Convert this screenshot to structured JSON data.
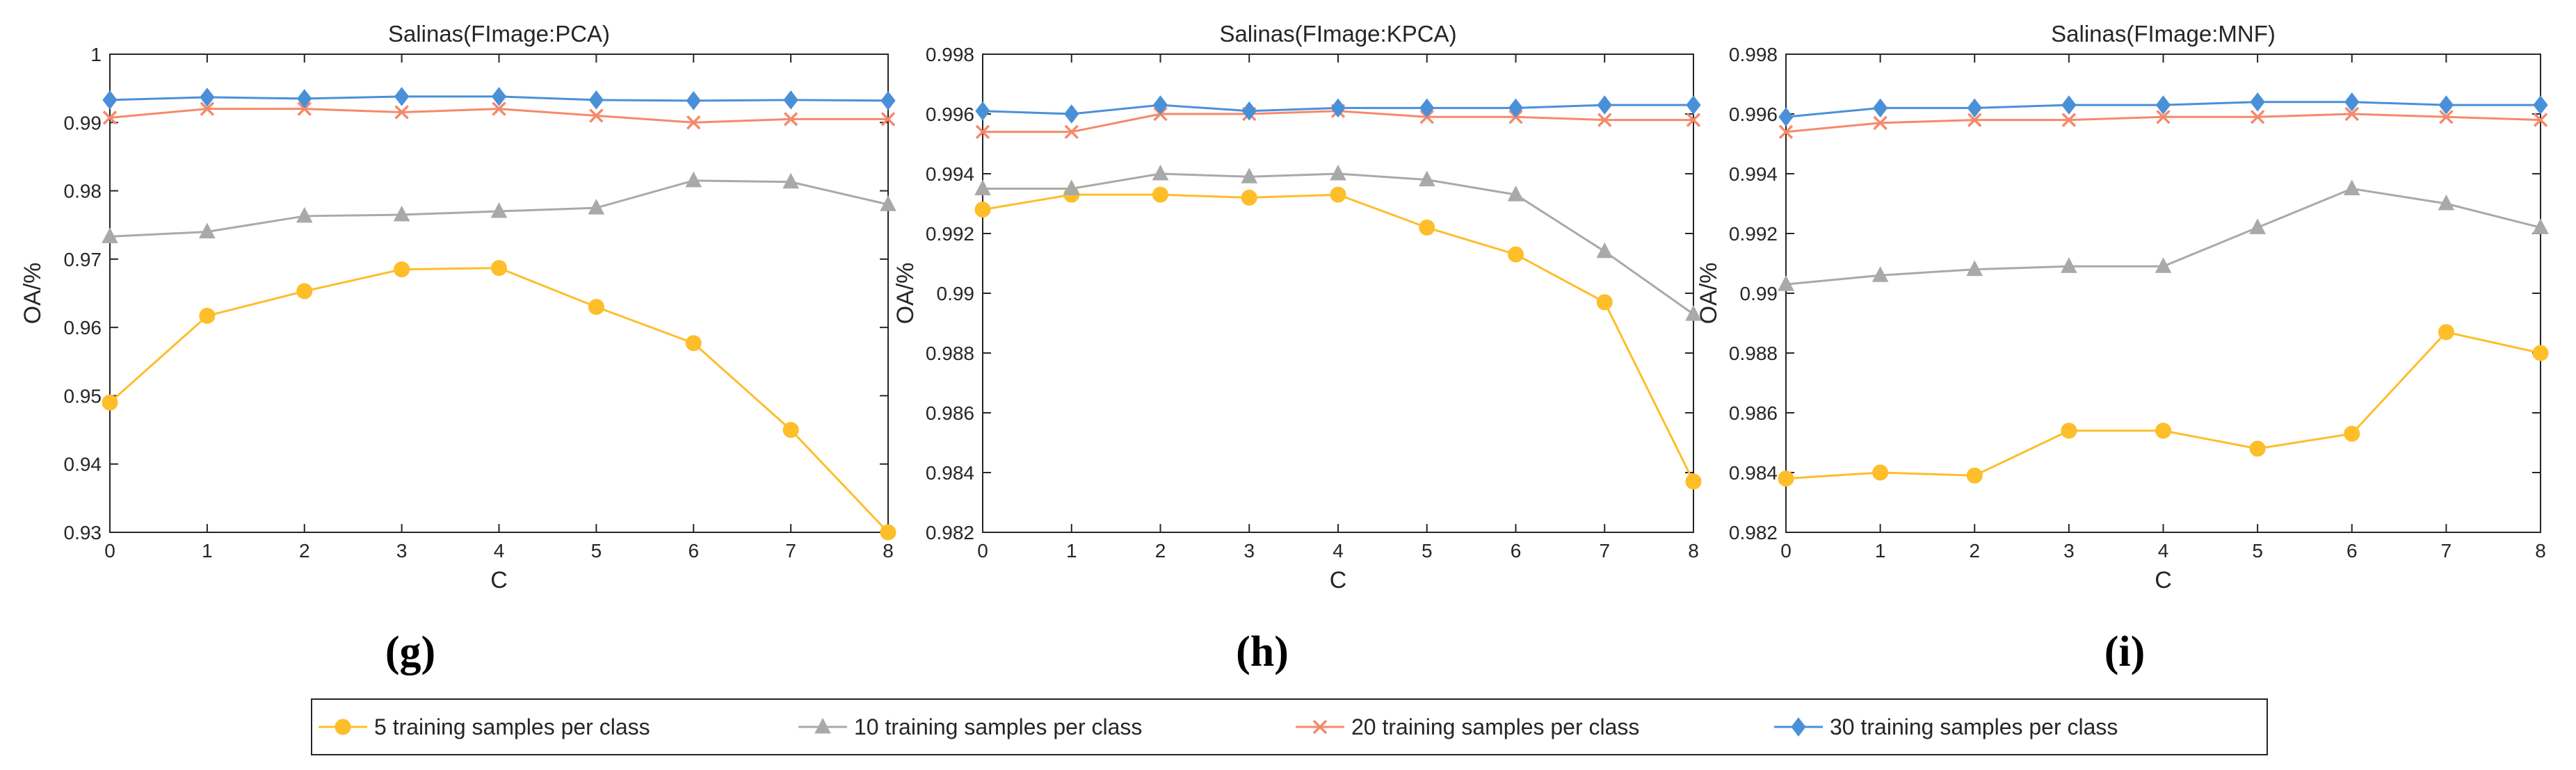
{
  "legend": [
    {
      "label": "5 training samples per class",
      "color": "#FDBE2A",
      "marker": "circle"
    },
    {
      "label": "10 training samples per class",
      "color": "#A9A9A9",
      "marker": "triangle"
    },
    {
      "label": "20 training samples per class",
      "color": "#F5896B",
      "marker": "cross"
    },
    {
      "label": "30 training samples per class",
      "color": "#4A90D9",
      "marker": "diamond"
    }
  ],
  "chart_data": [
    {
      "type": "line",
      "panel": "(g)",
      "title": "Salinas(FImage:PCA)",
      "xlabel": "C",
      "ylabel": "OA/%",
      "x": [
        0,
        1,
        2,
        3,
        4,
        5,
        6,
        7,
        8
      ],
      "xticks": [
        "0",
        "1",
        "2",
        "3",
        "4",
        "5",
        "6",
        "7",
        "8"
      ],
      "ylim": [
        0.93,
        1.0
      ],
      "yticks": [
        "0.93",
        "0.94",
        "0.95",
        "0.96",
        "0.97",
        "0.98",
        "0.99",
        "1"
      ],
      "series": [
        {
          "name": "5 training samples per class",
          "values": [
            0.949,
            0.9617,
            0.9653,
            0.9685,
            0.9687,
            0.963,
            0.9577,
            0.945,
            0.93
          ]
        },
        {
          "name": "10 training samples per class",
          "values": [
            0.9733,
            0.974,
            0.9763,
            0.9765,
            0.977,
            0.9775,
            0.9815,
            0.9813,
            0.978
          ]
        },
        {
          "name": "20 training samples per class",
          "values": [
            0.9907,
            0.992,
            0.992,
            0.9915,
            0.992,
            0.991,
            0.99,
            0.9905,
            0.9905
          ]
        },
        {
          "name": "30 training samples per class",
          "values": [
            0.9933,
            0.9937,
            0.9935,
            0.9938,
            0.9938,
            0.9933,
            0.9932,
            0.9933,
            0.9932
          ]
        }
      ]
    },
    {
      "type": "line",
      "panel": "(h)",
      "title": "Salinas(FImage:KPCA)",
      "xlabel": "C",
      "ylabel": "OA/%",
      "x": [
        0,
        1,
        2,
        3,
        4,
        5,
        6,
        7,
        8
      ],
      "xticks": [
        "0",
        "1",
        "2",
        "3",
        "4",
        "5",
        "6",
        "7",
        "8"
      ],
      "ylim": [
        0.982,
        0.998
      ],
      "yticks": [
        "0.982",
        "0.984",
        "0.986",
        "0.988",
        "0.99",
        "0.992",
        "0.994",
        "0.996",
        "0.998"
      ],
      "series": [
        {
          "name": "5 training samples per class",
          "values": [
            0.9928,
            0.9933,
            0.9933,
            0.9932,
            0.9933,
            0.9922,
            0.9913,
            0.9897,
            0.9837
          ]
        },
        {
          "name": "10 training samples per class",
          "values": [
            0.9935,
            0.9935,
            0.994,
            0.9939,
            0.994,
            0.9938,
            0.9933,
            0.9914,
            0.9893
          ]
        },
        {
          "name": "20 training samples per class",
          "values": [
            0.9954,
            0.9954,
            0.996,
            0.996,
            0.9961,
            0.9959,
            0.9959,
            0.9958,
            0.9958
          ]
        },
        {
          "name": "30 training samples per class",
          "values": [
            0.9961,
            0.996,
            0.9963,
            0.9961,
            0.9962,
            0.9962,
            0.9962,
            0.9963,
            0.9963
          ]
        }
      ]
    },
    {
      "type": "line",
      "panel": "(i)",
      "title": "Salinas(FImage:MNF)",
      "xlabel": "C",
      "ylabel": "OA/%",
      "x": [
        0,
        1,
        2,
        3,
        4,
        5,
        6,
        7,
        8
      ],
      "xticks": [
        "0",
        "1",
        "2",
        "3",
        "4",
        "5",
        "6",
        "7",
        "8"
      ],
      "ylim": [
        0.982,
        0.998
      ],
      "yticks": [
        "0.982",
        "0.984",
        "0.986",
        "0.988",
        "0.99",
        "0.992",
        "0.994",
        "0.996",
        "0.998"
      ],
      "series": [
        {
          "name": "5 training samples per class",
          "values": [
            0.9838,
            0.984,
            0.9839,
            0.9854,
            0.9854,
            0.9848,
            0.9853,
            0.9887,
            0.988
          ]
        },
        {
          "name": "10 training samples per class",
          "values": [
            0.9903,
            0.9906,
            0.9908,
            0.9909,
            0.9909,
            0.9922,
            0.9935,
            0.993,
            0.9922
          ]
        },
        {
          "name": "20 training samples per class",
          "values": [
            0.9954,
            0.9957,
            0.9958,
            0.9958,
            0.9959,
            0.9959,
            0.996,
            0.9959,
            0.9958
          ]
        },
        {
          "name": "30 training samples per class",
          "values": [
            0.9959,
            0.9962,
            0.9962,
            0.9963,
            0.9963,
            0.9964,
            0.9964,
            0.9963,
            0.9963
          ]
        }
      ]
    }
  ]
}
